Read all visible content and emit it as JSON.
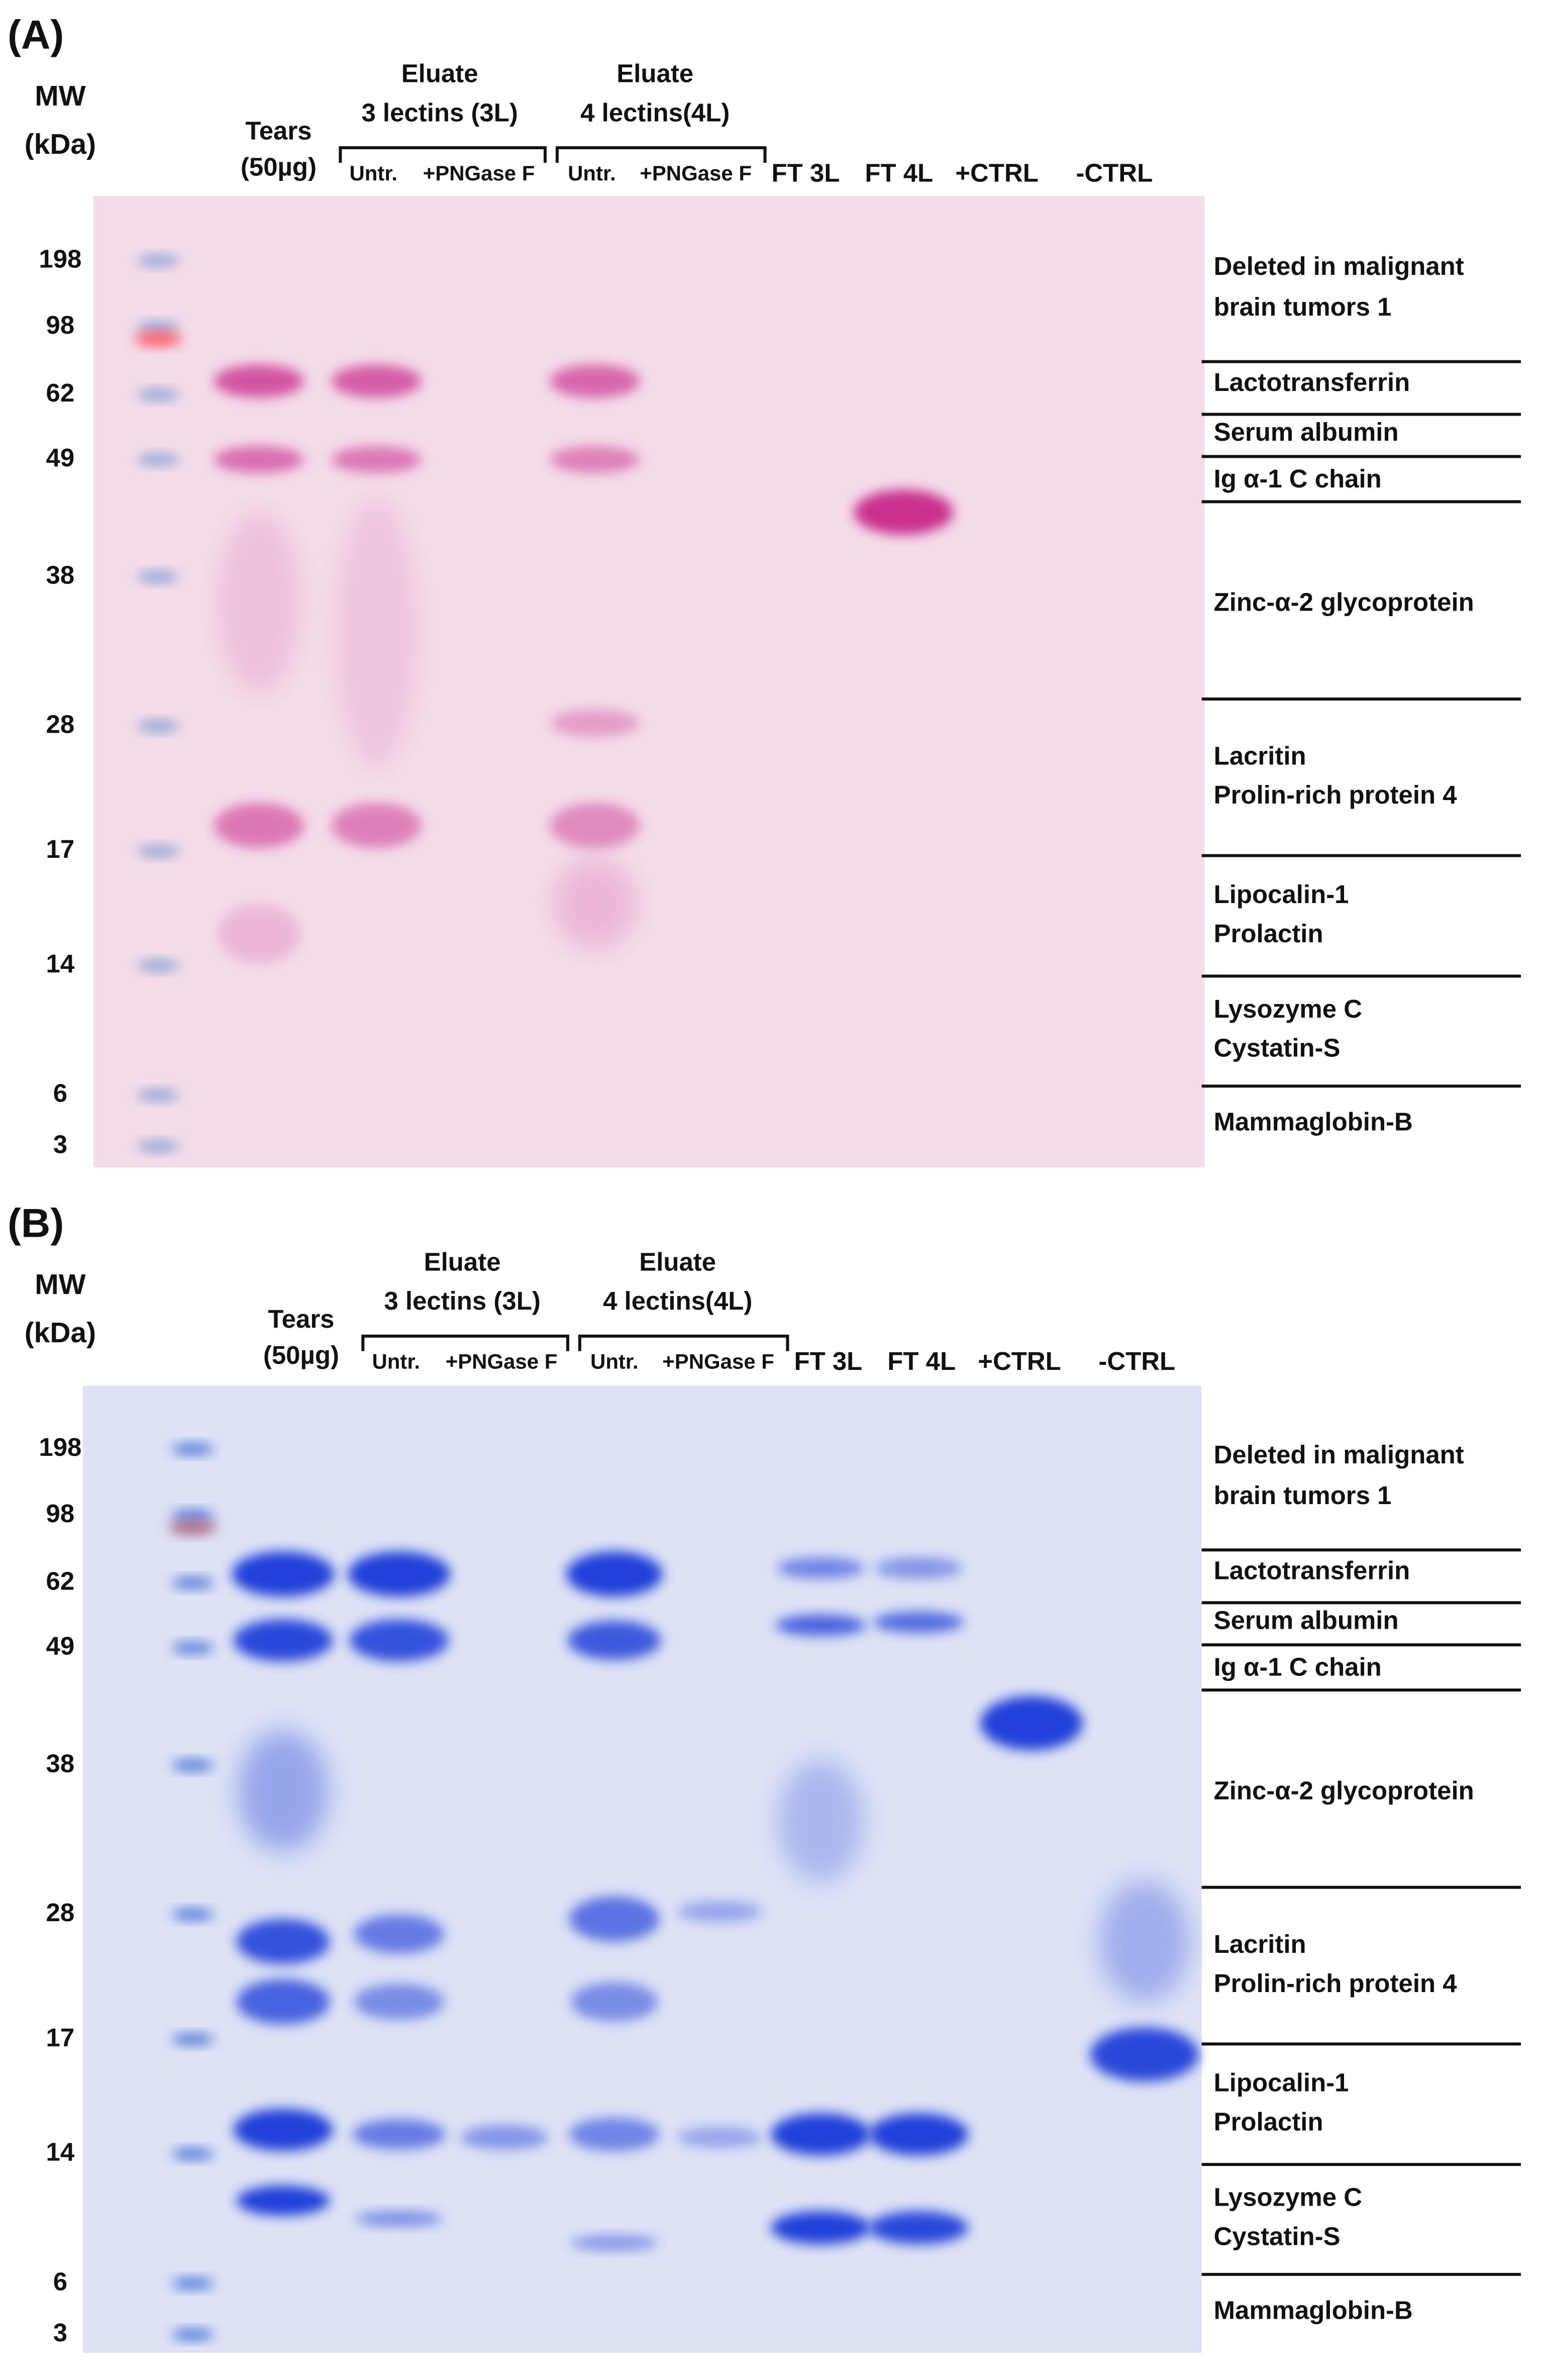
{
  "panels": [
    {
      "label": "(A)",
      "mw_title": [
        "MW",
        "(kDa)"
      ],
      "groups": [
        {
          "lines": [
            "Tears",
            "(50µg)"
          ]
        },
        {
          "lines": [
            "Eluate",
            "3 lectins (3L)"
          ]
        },
        {
          "lines": [
            "Eluate",
            "4 lectins(4L)"
          ]
        }
      ],
      "lanes": [
        "Untr.",
        "+PNGase F",
        "Untr.",
        "+PNGase F",
        "FT 3L",
        "FT 4L",
        "+CTRL",
        "-CTRL"
      ],
      "mw_markers": [
        198,
        98,
        62,
        49,
        38,
        28,
        17,
        14,
        6,
        3
      ],
      "proteins": [
        [
          "Deleted in malignant",
          "brain tumors 1"
        ],
        [
          "Lactotransferrin"
        ],
        [
          "Serum albumin"
        ],
        [
          "Ig α-1 C chain"
        ],
        [
          "Zinc-α-2 glycoprotein"
        ],
        [
          "Lacritin",
          "Prolin-rich protein 4"
        ],
        [
          "Lipocalin-1",
          "Prolactin"
        ],
        [
          "Lysozyme C",
          "Cystatin-S"
        ],
        [
          "Mammaglobin-B"
        ]
      ]
    },
    {
      "label": "(B)",
      "mw_title": [
        "MW",
        "(kDa)"
      ],
      "groups": [
        {
          "lines": [
            "Tears",
            "(50µg)"
          ]
        },
        {
          "lines": [
            "Eluate",
            "3 lectins (3L)"
          ]
        },
        {
          "lines": [
            "Eluate",
            "4 lectins(4L)"
          ]
        }
      ],
      "lanes": [
        "Untr.",
        "+PNGase F",
        "Untr.",
        "+PNGase F",
        "FT 3L",
        "FT 4L",
        "+CTRL",
        "-CTRL"
      ],
      "mw_markers": [
        198,
        98,
        62,
        49,
        38,
        28,
        17,
        14,
        6,
        3
      ],
      "proteins": [
        [
          "Deleted in malignant",
          "brain tumors 1"
        ],
        [
          "Lactotransferrin"
        ],
        [
          "Serum albumin"
        ],
        [
          "Ig α-1 C chain"
        ],
        [
          "Zinc-α-2 glycoprotein"
        ],
        [
          "Lacritin",
          "Prolin-rich protein 4"
        ],
        [
          "Lipocalin-1",
          "Prolactin"
        ],
        [
          "Lysozyme C",
          "Cystatin-S"
        ],
        [
          "Mammaglobin-B"
        ]
      ]
    }
  ]
}
